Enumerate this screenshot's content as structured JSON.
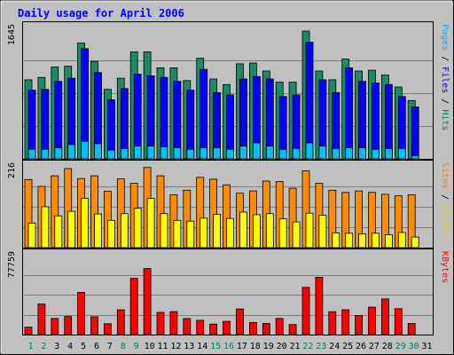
{
  "chart_data": {
    "type": "bar",
    "title": "Daily usage for April 2006",
    "categories": [
      "1",
      "2",
      "3",
      "4",
      "5",
      "6",
      "7",
      "8",
      "9",
      "10",
      "11",
      "12",
      "13",
      "14",
      "15",
      "16",
      "17",
      "18",
      "19",
      "20",
      "21",
      "22",
      "23",
      "24",
      "25",
      "26",
      "27",
      "28",
      "29",
      "30",
      "31"
    ],
    "weekend_days": [
      "1",
      "2",
      "8",
      "9",
      "15",
      "16",
      "22",
      "23",
      "29",
      "30"
    ],
    "grid": true,
    "panels": [
      {
        "id": "hits",
        "max_label": "1645",
        "ylim": [
          0,
          1645
        ],
        "legend": [
          {
            "text": "Pages",
            "color": "#00b4f0"
          },
          {
            "text": " / ",
            "color": "#000000"
          },
          {
            "text": "Files",
            "color": "#0000e6"
          },
          {
            "text": " / ",
            "color": "#000000"
          },
          {
            "text": "Hits",
            "color": "#00805a"
          }
        ],
        "series": [
          {
            "name": "Hits",
            "color": "#1a8c64",
            "values": [
              990,
              1020,
              1150,
              1160,
              1450,
              1220,
              870,
              1010,
              1340,
              1340,
              1140,
              1140,
              980,
              1260,
              1000,
              930,
              1190,
              1200,
              1100,
              960,
              960,
              1600,
              1100,
              990,
              1250,
              1100,
              1110,
              1050,
              900,
              730,
              0
            ]
          },
          {
            "name": "Files",
            "color": "#0000ff",
            "values": [
              860,
              870,
              970,
              1010,
              1380,
              1080,
              740,
              880,
              1060,
              1040,
              1020,
              970,
              860,
              1120,
              830,
              800,
              1000,
              1030,
              1000,
              780,
              800,
              1460,
              990,
              830,
              1140,
              970,
              950,
              930,
              780,
              650,
              0
            ]
          },
          {
            "name": "Pages",
            "color": "#00c0ff",
            "values": [
              120,
              120,
              140,
              180,
              220,
              190,
              110,
              130,
              160,
              160,
              150,
              140,
              120,
              140,
              140,
              120,
              160,
              200,
              160,
              120,
              130,
              200,
              160,
              130,
              140,
              140,
              120,
              130,
              130,
              40,
              0
            ]
          }
        ]
      },
      {
        "id": "visits",
        "max_label": "216",
        "ylim": [
          0,
          216
        ],
        "legend": [
          {
            "text": "Sites",
            "color": "#ff8000"
          },
          {
            "text": " / ",
            "color": "#000000"
          },
          {
            "text": "Visits",
            "color": "#e8c800"
          }
        ],
        "series": [
          {
            "name": "Visits",
            "color": "#ff8c00",
            "values": [
              180,
              162,
              190,
              209,
              183,
              190,
              149,
              182,
              170,
              212,
              190,
              140,
              152,
              186,
              181,
              166,
              144,
              150,
              176,
              175,
              157,
              203,
              170,
              152,
              146,
              150,
              146,
              141,
              137,
              140,
              0
            ]
          },
          {
            "name": "Sites",
            "color": "#ffff00",
            "values": [
              65,
              108,
              84,
              96,
              130,
              89,
              72,
              90,
              104,
              130,
              90,
              72,
              70,
              78,
              88,
              77,
              94,
              87,
              90,
              76,
              68,
              91,
              86,
              39,
              38,
              36,
              38,
              34,
              40,
              28,
              0
            ]
          }
        ]
      },
      {
        "id": "kbytes",
        "max_label": "77759",
        "ylim": [
          0,
          77759
        ],
        "legend": [
          {
            "text": "KBytes",
            "color": "#ff0000"
          }
        ],
        "series": [
          {
            "name": "KBytes",
            "color": "#ff0000",
            "values": [
              7240,
              29700,
              15700,
              17600,
              41100,
              17400,
              10520,
              24100,
              54800,
              64300,
              21600,
              22400,
              15600,
              13900,
              10200,
              12900,
              25000,
              11800,
              10900,
              15700,
              9760,
              46000,
              55800,
              22300,
              24200,
              18700,
              26700,
              34700,
              25200,
              10800,
              0
            ]
          }
        ]
      }
    ]
  }
}
